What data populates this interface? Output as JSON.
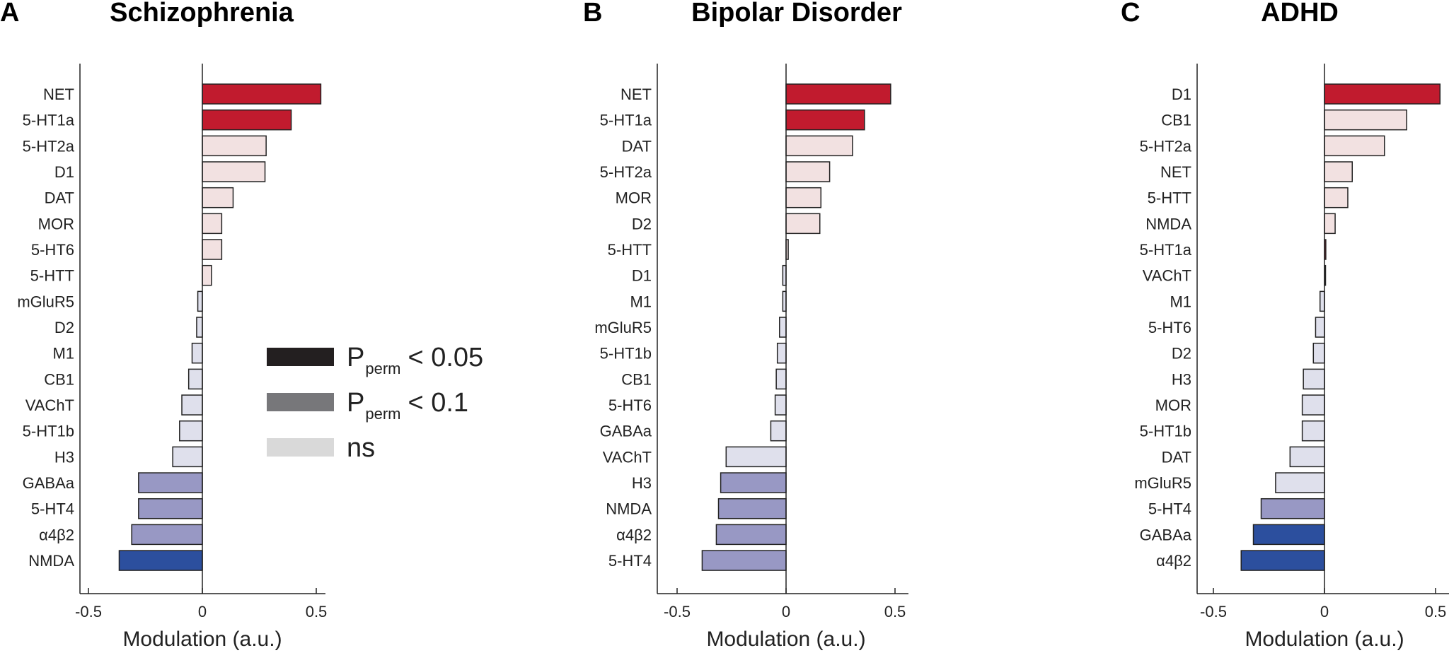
{
  "colors": {
    "sig_pos": "#c11b2e",
    "sig_neg": "#2c4f9e",
    "trend_pos": "#f0d7d7",
    "trend_neg": "#9898c4",
    "ns_pos": "#f2e1e1",
    "ns_neg": "#dfe0ec",
    "legend_sig": "#231f20",
    "legend_trend": "#77777a",
    "legend_ns": "#d9d9d9"
  },
  "legend": {
    "items": [
      {
        "key": "sig",
        "main": "P",
        "sub": "perm",
        "tail": "< 0.05"
      },
      {
        "key": "trend",
        "main": "P",
        "sub": "perm",
        "tail": "< 0.1"
      },
      {
        "key": "ns",
        "main": "ns",
        "sub": "",
        "tail": ""
      }
    ]
  },
  "chart_data": [
    {
      "type": "bar",
      "orientation": "horizontal",
      "panel": "A",
      "title": "Schizophrenia",
      "xlabel": "Modulation (a.u.)",
      "xlim": [
        -0.57,
        0.57
      ],
      "xticks": [
        -0.5,
        0,
        0.5
      ],
      "xtick_labels": [
        "-0.5",
        "0",
        "0.5"
      ],
      "categories": [
        "NET",
        "5-HT1a",
        "5-HT2a",
        "D1",
        "DAT",
        "MOR",
        "5-HT6",
        "5-HTT",
        "mGluR5",
        "D2",
        "M1",
        "CB1",
        "VAChT",
        "5-HT1b",
        "H3",
        "GABAa",
        "5-HT4",
        "α4β2",
        "NMDA"
      ],
      "values": [
        0.52,
        0.39,
        0.28,
        0.275,
        0.135,
        0.085,
        0.085,
        0.04,
        -0.02,
        -0.025,
        -0.045,
        -0.06,
        -0.09,
        -0.1,
        -0.13,
        -0.28,
        -0.28,
        -0.31,
        -0.365
      ],
      "significance": [
        "sig",
        "sig",
        "ns",
        "ns",
        "ns",
        "ns",
        "ns",
        "ns",
        "ns",
        "ns",
        "ns",
        "ns",
        "ns",
        "ns",
        "ns",
        "trend",
        "trend",
        "trend",
        "sig"
      ]
    },
    {
      "type": "bar",
      "orientation": "horizontal",
      "panel": "B",
      "title": "Bipolar Disorder",
      "xlabel": "Modulation (a.u.)",
      "xlim": [
        -0.57,
        0.57
      ],
      "xticks": [
        -0.5,
        0,
        0.5
      ],
      "xtick_labels": [
        "-0.5",
        "0",
        "0.5"
      ],
      "categories": [
        "NET",
        "5-HT1a",
        "DAT",
        "5-HT2a",
        "MOR",
        "D2",
        "5-HTT",
        "D1",
        "M1",
        "mGluR5",
        "5-HT1b",
        "CB1",
        "5-HT6",
        "GABAa",
        "VAChT",
        "H3",
        "NMDA",
        "α4β2",
        "5-HT4"
      ],
      "values": [
        0.48,
        0.36,
        0.305,
        0.2,
        0.16,
        0.155,
        0.01,
        -0.015,
        -0.015,
        -0.03,
        -0.04,
        -0.045,
        -0.05,
        -0.07,
        -0.275,
        -0.3,
        -0.31,
        -0.32,
        -0.385
      ],
      "significance": [
        "sig",
        "sig",
        "ns",
        "ns",
        "ns",
        "ns",
        "ns",
        "ns",
        "ns",
        "ns",
        "ns",
        "ns",
        "ns",
        "ns",
        "ns",
        "trend",
        "trend",
        "trend",
        "trend"
      ]
    },
    {
      "type": "bar",
      "orientation": "horizontal",
      "panel": "C",
      "title": "ADHD",
      "xlabel": "Modulation (a.u.)",
      "xlim": [
        -0.57,
        0.57
      ],
      "xticks": [
        -0.5,
        0,
        0.5
      ],
      "xtick_labels": [
        "-0.5",
        "0",
        "0.5"
      ],
      "categories": [
        "D1",
        "CB1",
        "5-HT2a",
        "NET",
        "5-HTT",
        "NMDA",
        "5-HT1a",
        "VAChT",
        "M1",
        "5-HT6",
        "D2",
        "H3",
        "MOR",
        "5-HT1b",
        "DAT",
        "mGluR5",
        "5-HT4",
        "GABAa",
        "α4β2"
      ],
      "values": [
        0.52,
        0.37,
        0.27,
        0.125,
        0.105,
        0.048,
        0.006,
        0.004,
        -0.02,
        -0.04,
        -0.05,
        -0.095,
        -0.1,
        -0.1,
        -0.155,
        -0.22,
        -0.285,
        -0.32,
        -0.375
      ],
      "significance": [
        "sig",
        "ns",
        "ns",
        "ns",
        "ns",
        "ns",
        "sig",
        "ns",
        "ns",
        "ns",
        "ns",
        "ns",
        "ns",
        "ns",
        "ns",
        "ns",
        "trend",
        "sig",
        "sig"
      ]
    }
  ]
}
